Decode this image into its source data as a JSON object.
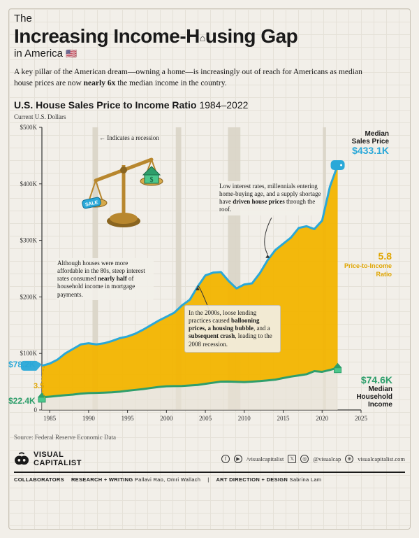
{
  "header": {
    "pretitle": "The",
    "title_html": "Increasing Income-H",
    "title_tail": "using Gap",
    "subtitle": "in America",
    "intro": "A key pillar of the American dream—owning a home—is increasingly out of reach for Americans as median house prices are now ",
    "intro_bold": "nearly 6x",
    "intro_tail": " the median income in the country."
  },
  "chart": {
    "title": "U.S. House Sales Price to Income Ratio ",
    "year_range": "1984–2022",
    "axis_note": "Current U.S. Dollars",
    "type": "area-line",
    "x_range": [
      1984,
      2025
    ],
    "xticks": [
      1985,
      1990,
      1995,
      2000,
      2005,
      2010,
      2015,
      2020,
      2025
    ],
    "y_range": [
      0,
      500
    ],
    "yticks": [
      0,
      100,
      200,
      300,
      400,
      500
    ],
    "ytick_prefix": "$",
    "ytick_suffix": "K",
    "recessions": [
      {
        "start": 1990.5,
        "end": 1991.2
      },
      {
        "start": 2001.2,
        "end": 2001.9
      },
      {
        "start": 2007.9,
        "end": 2009.5
      },
      {
        "start": 2020.1,
        "end": 2020.5
      }
    ],
    "recession_color": "#d9d4c7",
    "price_series_color": "#2aa8d8",
    "price_fill_color": "#f2b400",
    "income_series_color": "#2e9e6b",
    "income_fill_color": "#e8e3d5",
    "background_color": "#f2efe9",
    "line_width": 3,
    "price_data": [
      [
        1984,
        78.2
      ],
      [
        1985,
        82
      ],
      [
        1986,
        89
      ],
      [
        1987,
        100
      ],
      [
        1988,
        108
      ],
      [
        1989,
        116
      ],
      [
        1990,
        118
      ],
      [
        1991,
        116
      ],
      [
        1992,
        118
      ],
      [
        1993,
        122
      ],
      [
        1994,
        127
      ],
      [
        1995,
        130
      ],
      [
        1996,
        135
      ],
      [
        1997,
        142
      ],
      [
        1998,
        150
      ],
      [
        1999,
        158
      ],
      [
        2000,
        165
      ],
      [
        2001,
        172
      ],
      [
        2002,
        185
      ],
      [
        2003,
        195
      ],
      [
        2004,
        218
      ],
      [
        2005,
        238
      ],
      [
        2006,
        243
      ],
      [
        2007,
        244
      ],
      [
        2008,
        228
      ],
      [
        2009,
        215
      ],
      [
        2010,
        222
      ],
      [
        2011,
        224
      ],
      [
        2012,
        242
      ],
      [
        2013,
        265
      ],
      [
        2014,
        283
      ],
      [
        2015,
        294
      ],
      [
        2016,
        305
      ],
      [
        2017,
        322
      ],
      [
        2018,
        325
      ],
      [
        2019,
        320
      ],
      [
        2020,
        335
      ],
      [
        2021,
        395
      ],
      [
        2022,
        433.1
      ]
    ],
    "income_data": [
      [
        1984,
        22.4
      ],
      [
        1985,
        23.5
      ],
      [
        1986,
        24.9
      ],
      [
        1987,
        26.1
      ],
      [
        1988,
        27.2
      ],
      [
        1989,
        28.9
      ],
      [
        1990,
        29.9
      ],
      [
        1991,
        30.1
      ],
      [
        1992,
        30.6
      ],
      [
        1993,
        31.2
      ],
      [
        1994,
        32.3
      ],
      [
        1995,
        34.1
      ],
      [
        1996,
        35.5
      ],
      [
        1997,
        37.0
      ],
      [
        1998,
        38.9
      ],
      [
        1999,
        40.7
      ],
      [
        2000,
        41.9
      ],
      [
        2001,
        42.2
      ],
      [
        2002,
        42.4
      ],
      [
        2003,
        43.3
      ],
      [
        2004,
        44.3
      ],
      [
        2005,
        46.3
      ],
      [
        2006,
        48.2
      ],
      [
        2007,
        50.2
      ],
      [
        2008,
        50.3
      ],
      [
        2009,
        49.8
      ],
      [
        2010,
        49.3
      ],
      [
        2011,
        50.1
      ],
      [
        2012,
        51.0
      ],
      [
        2013,
        52.3
      ],
      [
        2014,
        53.7
      ],
      [
        2015,
        56.5
      ],
      [
        2016,
        59.0
      ],
      [
        2017,
        61.1
      ],
      [
        2018,
        63.2
      ],
      [
        2019,
        68.7
      ],
      [
        2020,
        67.5
      ],
      [
        2021,
        70.8
      ],
      [
        2022,
        74.6
      ]
    ],
    "start_labels": {
      "price": "$78.2K",
      "income": "$22.4K",
      "ratio": "3.5"
    },
    "end_labels": {
      "price_title": "Median\nSales Price",
      "price_value": "$433.1K",
      "ratio_value": "5.8",
      "ratio_title": "Price-to-Income\nRatio",
      "income_value": "$74.6K",
      "income_title": "Median\nHousehold Income"
    },
    "recession_legend": "← Indicates a recession",
    "annotations": {
      "a80s": "Although houses were more affordable in the 80s, steep interest rates consumed <b>nearly half</b> of household income in mortgage payments.",
      "a2000s": "In the 2000s, loose lending practices caused <b>ballooning prices, a housing bubble</b>, and a <b>subsequent crash</b>, leading to the 2008 recession.",
      "aRecent": "Low interest rates, millennials entering home-buying age, and a supply shortage have <b>driven house prices</b> through the roof."
    }
  },
  "source": "Source: Federal Reserve Economic Data",
  "footer": {
    "brand": "VISUAL CAPITALIST",
    "socials": {
      "yt": "/visualcapitalist",
      "ig": "@visualcap",
      "site": "visualcapitalist.com"
    },
    "collab_label": "COLLABORATORS",
    "research_label": "RESEARCH + WRITING",
    "research_names": "Pallavi Rao, Omri Wallach",
    "design_label": "ART DIRECTION + DESIGN",
    "design_names": "Sabrina Lam"
  }
}
